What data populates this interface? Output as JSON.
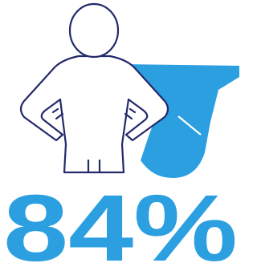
{
  "stat": {
    "text": "84%"
  }
}
